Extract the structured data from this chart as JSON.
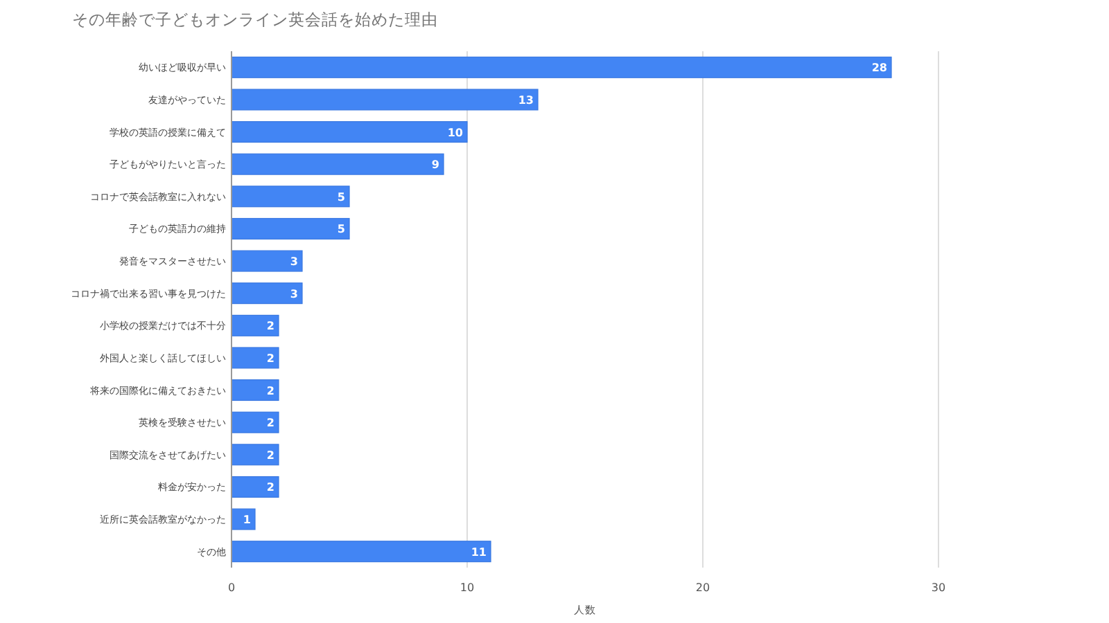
{
  "chart_data": {
    "type": "bar",
    "orientation": "horizontal",
    "title": "その年齢で子どもオンライン英会話を始めた理由",
    "xlabel": "人数",
    "categories": [
      "幼いほど吸収が早い",
      "友達がやっていた",
      "学校の英語の授業に備えて",
      "子どもがやりたいと言った",
      "コロナで英会話教室に入れない",
      "子どもの英語力の維持",
      "発音をマスターさせたい",
      "コロナ禍で出来る習い事を見つけた",
      "小学校の授業だけでは不十分",
      "外国人と楽しく話してほしい",
      "将来の国際化に備えておきたい",
      "英検を受験させたい",
      "国際交流をさせてあげたい",
      "料金が安かった",
      "近所に英会話教室がなかった",
      "その他"
    ],
    "values": [
      28,
      13,
      10,
      9,
      5,
      5,
      3,
      3,
      2,
      2,
      2,
      2,
      2,
      2,
      1,
      11
    ],
    "color": "#4285f4",
    "xlim": [
      0,
      30
    ],
    "xticks": [
      0,
      10,
      20,
      30
    ],
    "grid": "x",
    "data_labels": true
  }
}
